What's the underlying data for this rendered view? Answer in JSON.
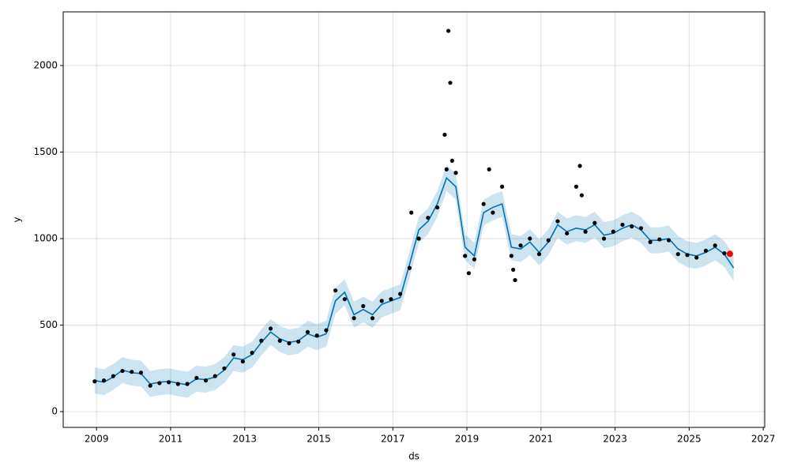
{
  "chart_data": {
    "type": "scatter",
    "xlabel": "ds",
    "ylabel": "y",
    "xlim": [
      2008.1,
      2027.04
    ],
    "ylim": [
      -91,
      2310
    ],
    "xticks": [
      2009,
      2011,
      2013,
      2015,
      2017,
      2019,
      2021,
      2023,
      2025,
      2027
    ],
    "yticks": [
      0,
      500,
      1000,
      1500,
      2000
    ],
    "grid": true,
    "series": [
      {
        "mark": "dots",
        "color": "#000000",
        "x": [
          2008.95,
          2009.2,
          2009.45,
          2009.7,
          2009.95,
          2010.2,
          2010.45,
          2010.7,
          2010.95,
          2011.2,
          2011.45,
          2011.7,
          2011.95,
          2012.2,
          2012.45,
          2012.7,
          2012.95,
          2013.2,
          2013.45,
          2013.7,
          2013.95,
          2014.2,
          2014.45,
          2014.7,
          2014.95,
          2015.2,
          2015.45,
          2015.7,
          2015.95,
          2016.2,
          2016.45,
          2016.7,
          2016.95,
          2017.2,
          2017.45,
          2017.7,
          2017.95,
          2018.2,
          2018.45,
          2018.7,
          2018.95,
          2019.2,
          2019.45,
          2019.7,
          2019.95,
          2020.2,
          2020.45,
          2020.7,
          2020.95,
          2021.2,
          2021.45,
          2021.7,
          2021.95,
          2022.2,
          2022.45,
          2022.7,
          2022.95,
          2023.2,
          2023.45,
          2023.7,
          2023.95,
          2024.2,
          2024.45,
          2024.7,
          2024.95,
          2025.2,
          2025.45,
          2025.7,
          2025.95,
          2017.5,
          2018.4,
          2018.5,
          2018.55,
          2018.6,
          2019.6,
          2020.3,
          2020.25,
          2022.05,
          2022.1,
          2019.05
        ],
        "values": [
          175,
          180,
          205,
          235,
          230,
          225,
          150,
          165,
          170,
          160,
          160,
          195,
          180,
          205,
          250,
          330,
          290,
          340,
          410,
          480,
          410,
          395,
          405,
          460,
          440,
          470,
          700,
          650,
          540,
          610,
          540,
          640,
          650,
          680,
          830,
          1000,
          1120,
          1180,
          1400,
          1380,
          900,
          880,
          1200,
          1150,
          1300,
          900,
          960,
          1000,
          910,
          990,
          1100,
          1030,
          1300,
          1040,
          1090,
          1000,
          1040,
          1080,
          1070,
          1060,
          980,
          995,
          990,
          910,
          905,
          890,
          930,
          960,
          915,
          1150,
          1600,
          2200,
          1900,
          1450,
          1400,
          760,
          820,
          1420,
          1250,
          800
        ]
      },
      {
        "mark": "line",
        "color": "#0072B2",
        "band_color": "#0072B2",
        "x": [
          2008.95,
          2009.2,
          2009.45,
          2009.7,
          2009.95,
          2010.2,
          2010.45,
          2010.7,
          2010.95,
          2011.2,
          2011.45,
          2011.7,
          2011.95,
          2012.2,
          2012.45,
          2012.7,
          2012.95,
          2013.2,
          2013.45,
          2013.7,
          2013.95,
          2014.2,
          2014.45,
          2014.7,
          2014.95,
          2015.2,
          2015.45,
          2015.7,
          2015.95,
          2016.2,
          2016.45,
          2016.7,
          2016.95,
          2017.2,
          2017.45,
          2017.7,
          2017.95,
          2018.2,
          2018.45,
          2018.7,
          2018.95,
          2019.2,
          2019.45,
          2019.7,
          2019.95,
          2020.2,
          2020.45,
          2020.7,
          2020.95,
          2021.2,
          2021.45,
          2021.7,
          2021.95,
          2022.2,
          2022.45,
          2022.7,
          2022.95,
          2023.2,
          2023.45,
          2023.7,
          2023.95,
          2024.2,
          2024.45,
          2024.7,
          2024.95,
          2025.2,
          2025.45,
          2025.7,
          2025.95,
          2026.2
        ],
        "values": [
          180,
          170,
          200,
          240,
          225,
          220,
          160,
          170,
          175,
          165,
          155,
          190,
          185,
          200,
          240,
          310,
          300,
          330,
          400,
          460,
          420,
          400,
          410,
          450,
          430,
          450,
          640,
          690,
          560,
          590,
          560,
          620,
          640,
          660,
          850,
          1050,
          1100,
          1200,
          1350,
          1300,
          950,
          900,
          1150,
          1180,
          1200,
          950,
          940,
          980,
          920,
          980,
          1080,
          1040,
          1060,
          1050,
          1080,
          1020,
          1030,
          1060,
          1080,
          1050,
          990,
          990,
          1000,
          940,
          910,
          900,
          920,
          950,
          910,
          830
        ],
        "lower": [
          105,
          95,
          125,
          165,
          150,
          145,
          85,
          95,
          100,
          90,
          80,
          115,
          110,
          125,
          165,
          235,
          225,
          255,
          325,
          385,
          345,
          325,
          335,
          375,
          355,
          375,
          565,
          615,
          485,
          515,
          485,
          545,
          565,
          585,
          775,
          975,
          1025,
          1125,
          1275,
          1225,
          875,
          825,
          1075,
          1105,
          1125,
          875,
          865,
          905,
          845,
          905,
          1005,
          965,
          985,
          975,
          1005,
          945,
          955,
          985,
          1005,
          975,
          915,
          915,
          925,
          865,
          835,
          825,
          845,
          875,
          835,
          755
        ],
        "upper": [
          255,
          245,
          275,
          315,
          300,
          295,
          235,
          245,
          250,
          240,
          230,
          265,
          260,
          275,
          315,
          385,
          375,
          405,
          475,
          535,
          495,
          475,
          485,
          525,
          505,
          525,
          715,
          765,
          635,
          665,
          635,
          695,
          715,
          735,
          925,
          1125,
          1175,
          1275,
          1425,
          1375,
          1025,
          975,
          1225,
          1255,
          1275,
          1025,
          1015,
          1055,
          995,
          1055,
          1155,
          1115,
          1135,
          1125,
          1155,
          1095,
          1105,
          1135,
          1155,
          1125,
          1065,
          1065,
          1075,
          1015,
          985,
          975,
          995,
          1025,
          985,
          905
        ]
      }
    ],
    "highlight": {
      "x": 2026.1,
      "y": 912,
      "color": "#ff0000"
    }
  }
}
